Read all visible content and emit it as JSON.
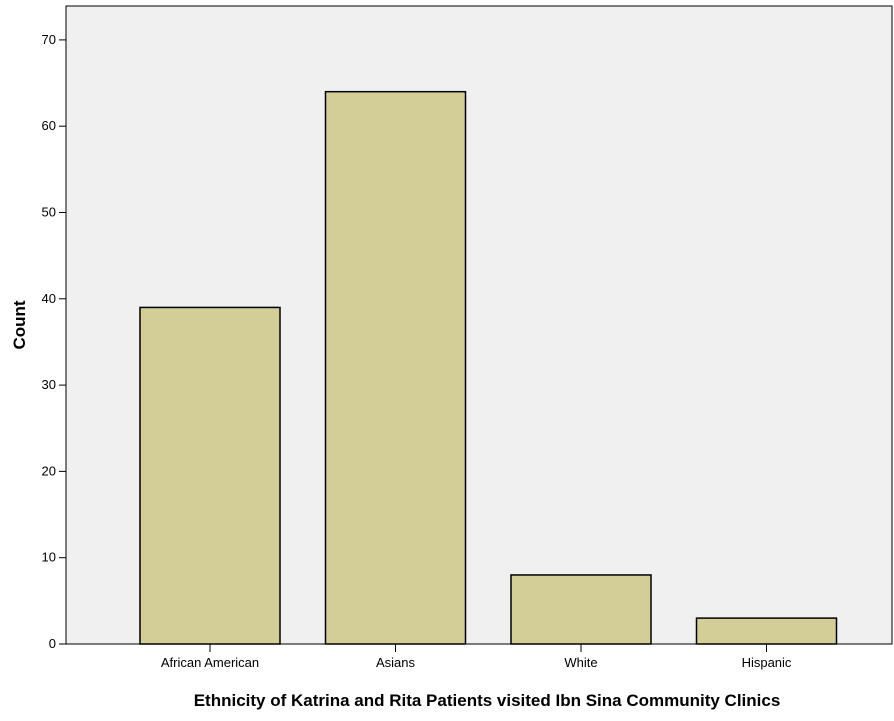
{
  "chart_data": {
    "type": "bar",
    "categories": [
      "African American",
      "Asians",
      "White",
      "Hispanic"
    ],
    "values": [
      39,
      64,
      8,
      3
    ],
    "xlabel": "Ethnicity of Katrina and Rita Patients visited Ibn Sina Community Clinics",
    "ylabel": "Count",
    "ylim": [
      0,
      70
    ],
    "yticks": [
      0,
      10,
      20,
      30,
      40,
      50,
      60,
      70
    ],
    "grid": false,
    "legend": "none",
    "colors": {
      "plot_background": "#f0f0f0",
      "bar_fill": "#d3ce97",
      "bar_stroke": "#000000"
    }
  }
}
